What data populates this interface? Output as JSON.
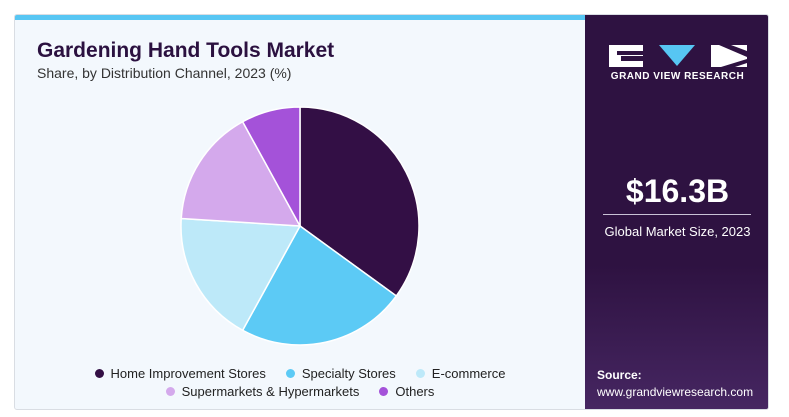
{
  "chart_data": {
    "type": "pie",
    "title": "Gardening Hand Tools Market",
    "subtitle": "Share, by Distribution Channel, 2023 (%)",
    "categories": [
      "Home Improvement Stores",
      "Specialty Stores",
      "E-commerce",
      "Supermarkets & Hypermarkets",
      "Others"
    ],
    "values": [
      35,
      23,
      18,
      16,
      8
    ],
    "colors": [
      "#330f45",
      "#5ccaf5",
      "#bde9f9",
      "#d4a9ec",
      "#a452d9"
    ],
    "legend_position": "bottom"
  },
  "sidebar": {
    "logo_text": "GRAND VIEW RESEARCH",
    "market_size_value": "$16.3B",
    "market_size_label": "Global Market Size, 2023",
    "source_label": "Source:",
    "source_url": "www.grandviewresearch.com"
  }
}
